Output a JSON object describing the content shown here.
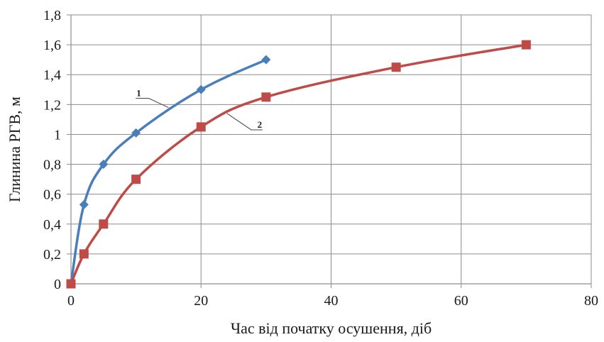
{
  "chart_data": {
    "type": "line",
    "xlabel": "Час від початку осушення, діб",
    "ylabel": "Глинина РГВ, м",
    "xlim": [
      0,
      80
    ],
    "ylim": [
      0,
      1.8
    ],
    "x_ticks": [
      0,
      20,
      40,
      60,
      80
    ],
    "x_tick_labels": [
      "0",
      "20",
      "40",
      "60",
      "80"
    ],
    "y_ticks": [
      0,
      0.2,
      0.4,
      0.6,
      0.8,
      1.0,
      1.2,
      1.4,
      1.6,
      1.8
    ],
    "y_tick_labels": [
      "0",
      "0,2",
      "0,4",
      "0,6",
      "0,8",
      "1",
      "1,2",
      "1,4",
      "1,6",
      "1,8"
    ],
    "grid": true,
    "series": [
      {
        "label": "1",
        "color": "#4a7ebb",
        "marker": "diamond",
        "x": [
          0,
          2,
          5,
          10,
          20,
          30
        ],
        "y": [
          0,
          0.53,
          0.8,
          1.01,
          1.3,
          1.5
        ]
      },
      {
        "label": "2",
        "color": "#be4b48",
        "marker": "square",
        "x": [
          0,
          2,
          5,
          10,
          20,
          30,
          50,
          70
        ],
        "y": [
          0,
          0.2,
          0.4,
          0.7,
          1.05,
          1.25,
          1.45,
          1.6
        ]
      }
    ]
  }
}
